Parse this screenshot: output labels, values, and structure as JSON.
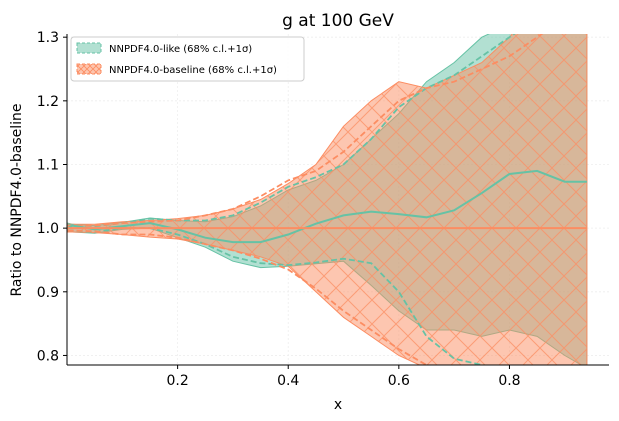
{
  "chart_data": {
    "type": "line",
    "title": "g at 100 GeV",
    "xlabel": "x",
    "ylabel": "Ratio to NNPDF4.0-baseline",
    "xlim": [
      0.0,
      0.98
    ],
    "ylim": [
      0.785,
      1.305
    ],
    "xticks": [
      0.2,
      0.4,
      0.6,
      0.8
    ],
    "xtick_labels": [
      "0.2",
      "0.4",
      "0.6",
      "0.8"
    ],
    "yticks": [
      0.8,
      0.9,
      1.0,
      1.1,
      1.2,
      1.3
    ],
    "ytick_labels": [
      "0.8",
      "0.9",
      "1.0",
      "1.1",
      "1.2",
      "1.3"
    ],
    "grid": true,
    "legend_position": "top-left",
    "legend": [
      {
        "label": "NNPDF4.0-like (68% c.l.+1σ)",
        "color": "#66c2a5"
      },
      {
        "label": "NNPDF4.0-baseline (68% c.l.+1σ)",
        "color": "#fc8d62"
      }
    ],
    "x": [
      0.001,
      0.01,
      0.05,
      0.1,
      0.15,
      0.2,
      0.25,
      0.3,
      0.35,
      0.4,
      0.45,
      0.5,
      0.55,
      0.6,
      0.65,
      0.7,
      0.75,
      0.8,
      0.85,
      0.9,
      0.94
    ],
    "series": [
      {
        "name": "NNPDF4.0-like (68% c.l.+1σ)",
        "color": "#66c2a5",
        "central": [
          1.0,
          1.004,
          0.998,
          1.003,
          1.008,
          0.998,
          0.985,
          0.978,
          0.978,
          0.99,
          1.007,
          1.02,
          1.026,
          1.022,
          1.017,
          1.028,
          1.055,
          1.085,
          1.09,
          1.073,
          1.073
        ],
        "band_upper": [
          1.008,
          1.006,
          1.004,
          1.009,
          1.016,
          1.012,
          1.01,
          1.018,
          1.035,
          1.06,
          1.075,
          1.1,
          1.14,
          1.18,
          1.23,
          1.26,
          1.3,
          1.32,
          1.35,
          1.35,
          1.35
        ],
        "band_lower": [
          0.995,
          0.994,
          0.992,
          0.998,
          1.0,
          0.985,
          0.97,
          0.948,
          0.938,
          0.94,
          0.944,
          0.948,
          0.91,
          0.87,
          0.84,
          0.84,
          0.83,
          0.84,
          0.83,
          0.8,
          0.78
        ],
        "dashed_upper": [
          1.005,
          1.005,
          1.003,
          1.008,
          1.015,
          1.012,
          1.012,
          1.02,
          1.04,
          1.065,
          1.08,
          1.1,
          1.14,
          1.19,
          1.22,
          1.24,
          1.27,
          1.3,
          1.33,
          1.35,
          1.35
        ],
        "dashed_lower": [
          0.996,
          0.996,
          0.994,
          1.0,
          1.0,
          0.99,
          0.975,
          0.955,
          0.945,
          0.942,
          0.946,
          0.952,
          0.945,
          0.9,
          0.83,
          0.795,
          0.785,
          0.78,
          0.78,
          0.78,
          0.78
        ]
      },
      {
        "name": "NNPDF4.0-baseline (68% c.l.+1σ)",
        "color": "#fc8d62",
        "central": [
          1.0,
          1.0,
          1.0,
          1.0,
          1.0,
          1.0,
          1.0,
          1.0,
          1.0,
          1.0,
          1.0,
          1.0,
          1.0,
          1.0,
          1.0,
          1.0,
          1.0,
          1.0,
          1.0,
          1.0,
          1.0
        ],
        "band_upper": [
          1.006,
          1.006,
          1.006,
          1.01,
          1.012,
          1.015,
          1.02,
          1.03,
          1.045,
          1.07,
          1.1,
          1.16,
          1.2,
          1.23,
          1.22,
          1.24,
          1.26,
          1.3,
          1.35,
          1.35,
          1.35
        ],
        "band_lower": [
          0.994,
          0.994,
          0.993,
          0.99,
          0.986,
          0.983,
          0.975,
          0.965,
          0.955,
          0.94,
          0.9,
          0.86,
          0.83,
          0.8,
          0.78,
          0.78,
          0.78,
          0.78,
          0.78,
          0.78,
          0.78
        ],
        "dashed_upper": [
          1.004,
          1.004,
          1.004,
          1.008,
          1.01,
          1.012,
          1.02,
          1.03,
          1.05,
          1.075,
          1.09,
          1.12,
          1.16,
          1.2,
          1.22,
          1.23,
          1.25,
          1.27,
          1.3,
          1.33,
          1.35
        ],
        "dashed_lower": [
          0.996,
          0.996,
          0.995,
          0.99,
          0.99,
          0.985,
          0.975,
          0.965,
          0.952,
          0.935,
          0.905,
          0.87,
          0.84,
          0.81,
          0.785,
          0.78,
          0.78,
          0.78,
          0.78,
          0.78,
          0.78
        ]
      }
    ]
  }
}
